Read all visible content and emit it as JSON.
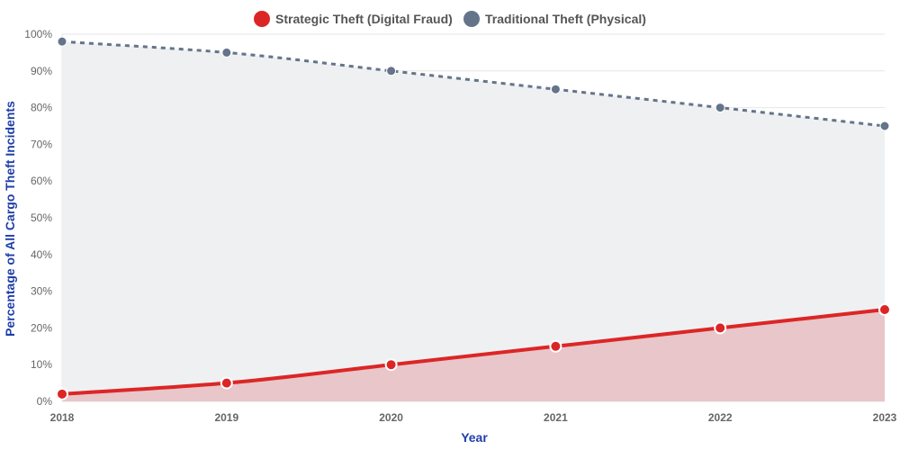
{
  "chart_data": {
    "type": "area",
    "title": "",
    "xlabel": "Year",
    "ylabel": "Percentage of All Cargo Theft Incidents",
    "categories": [
      "2018",
      "2019",
      "2020",
      "2021",
      "2022",
      "2023"
    ],
    "ylim": [
      0,
      100
    ],
    "yticks": [
      "0%",
      "10%",
      "20%",
      "30%",
      "40%",
      "50%",
      "60%",
      "70%",
      "80%",
      "90%",
      "100%"
    ],
    "grid": true,
    "legend_position": "top-center",
    "series": [
      {
        "name": "Strategic Theft (Digital Fraud)",
        "values": [
          2,
          5,
          10,
          15,
          20,
          25
        ],
        "color": "#dc2626",
        "fill": "#e8c6c9",
        "line_style": "solid"
      },
      {
        "name": "Traditional Theft (Physical)",
        "values": [
          98,
          95,
          90,
          85,
          80,
          75
        ],
        "color": "#64748b",
        "fill": "#eff0f2",
        "line_style": "dotted"
      }
    ]
  }
}
